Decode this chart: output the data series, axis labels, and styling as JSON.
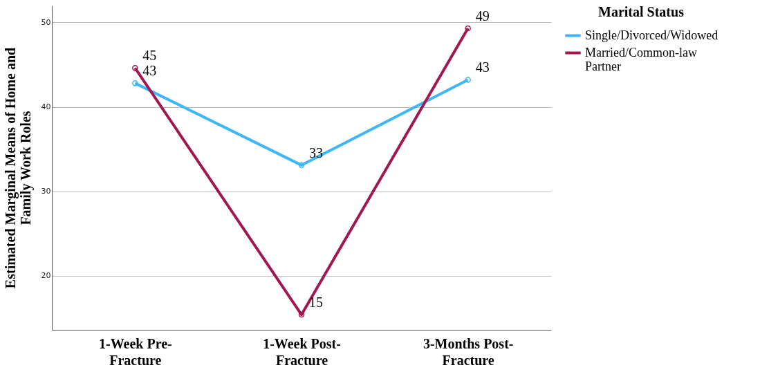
{
  "chart_data": {
    "type": "line",
    "ylabel": "Estimated Marginal Means of Home and Family Work Roles",
    "legend_title": "Marital Status",
    "categories": [
      "1-Week Pre-Fracture",
      "1-Week Post-Fracture",
      "3-Months Post-Fracture"
    ],
    "series": [
      {
        "name": "Single/Divorced/Widowed",
        "color": "#3db7f7",
        "values": [
          42.8,
          33.1,
          43.2
        ],
        "value_labels": [
          "43",
          "33",
          "43"
        ]
      },
      {
        "name": "Married/Common-law Partner",
        "color": "#a1174f",
        "values": [
          44.6,
          15.4,
          49.3
        ],
        "value_labels": [
          "45",
          "15",
          "49"
        ]
      }
    ],
    "ylim": [
      13.6,
      52
    ],
    "yticks": [
      20,
      30,
      40,
      50
    ],
    "grid": "y",
    "legend": "top right",
    "marker": "circle",
    "line_style": "solid"
  }
}
